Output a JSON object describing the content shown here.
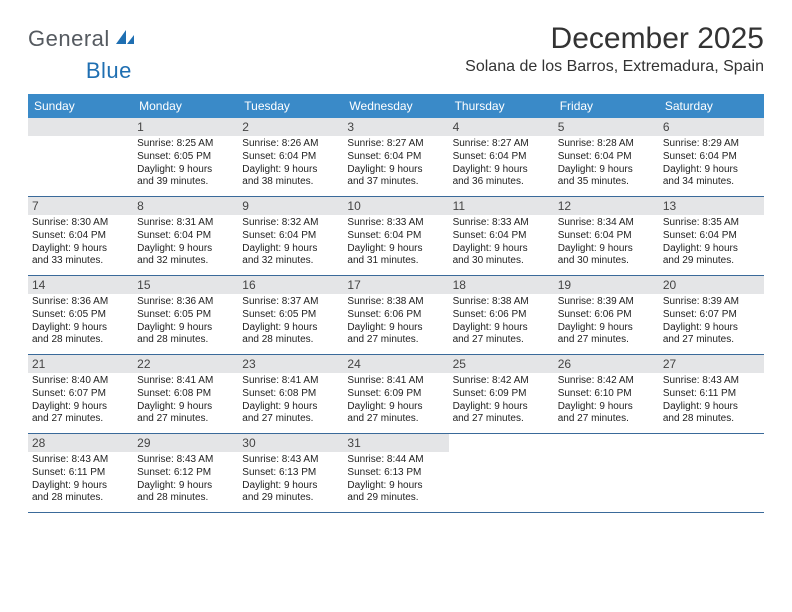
{
  "brand": {
    "part1": "General",
    "part2": "Blue"
  },
  "title": "December 2025",
  "location": "Solana de los Barros, Extremadura, Spain",
  "colors": {
    "header_bg": "#3a8ac8",
    "header_text": "#ffffff",
    "band_bg": "#e4e5e7",
    "rule": "#3a6a9a",
    "title_color": "#333333",
    "body_text": "#222222",
    "brand_gray": "#555a60",
    "brand_blue": "#1f6fb2",
    "background": "#ffffff"
  },
  "typography": {
    "title_pt": 30,
    "subtitle_pt": 16,
    "header_pt": 12,
    "daynum_pt": 12,
    "body_pt": 10
  },
  "layout": {
    "columns": 7,
    "rows": 5,
    "aspect_w": 792,
    "aspect_h": 612
  },
  "weekdays": [
    "Sunday",
    "Monday",
    "Tuesday",
    "Wednesday",
    "Thursday",
    "Friday",
    "Saturday"
  ],
  "weeks": [
    [
      {
        "num": "",
        "blank": true
      },
      {
        "num": "1",
        "sunrise": "Sunrise: 8:25 AM",
        "sunset": "Sunset: 6:05 PM",
        "day1": "Daylight: 9 hours",
        "day2": "and 39 minutes."
      },
      {
        "num": "2",
        "sunrise": "Sunrise: 8:26 AM",
        "sunset": "Sunset: 6:04 PM",
        "day1": "Daylight: 9 hours",
        "day2": "and 38 minutes."
      },
      {
        "num": "3",
        "sunrise": "Sunrise: 8:27 AM",
        "sunset": "Sunset: 6:04 PM",
        "day1": "Daylight: 9 hours",
        "day2": "and 37 minutes."
      },
      {
        "num": "4",
        "sunrise": "Sunrise: 8:27 AM",
        "sunset": "Sunset: 6:04 PM",
        "day1": "Daylight: 9 hours",
        "day2": "and 36 minutes."
      },
      {
        "num": "5",
        "sunrise": "Sunrise: 8:28 AM",
        "sunset": "Sunset: 6:04 PM",
        "day1": "Daylight: 9 hours",
        "day2": "and 35 minutes."
      },
      {
        "num": "6",
        "sunrise": "Sunrise: 8:29 AM",
        "sunset": "Sunset: 6:04 PM",
        "day1": "Daylight: 9 hours",
        "day2": "and 34 minutes."
      }
    ],
    [
      {
        "num": "7",
        "sunrise": "Sunrise: 8:30 AM",
        "sunset": "Sunset: 6:04 PM",
        "day1": "Daylight: 9 hours",
        "day2": "and 33 minutes."
      },
      {
        "num": "8",
        "sunrise": "Sunrise: 8:31 AM",
        "sunset": "Sunset: 6:04 PM",
        "day1": "Daylight: 9 hours",
        "day2": "and 32 minutes."
      },
      {
        "num": "9",
        "sunrise": "Sunrise: 8:32 AM",
        "sunset": "Sunset: 6:04 PM",
        "day1": "Daylight: 9 hours",
        "day2": "and 32 minutes."
      },
      {
        "num": "10",
        "sunrise": "Sunrise: 8:33 AM",
        "sunset": "Sunset: 6:04 PM",
        "day1": "Daylight: 9 hours",
        "day2": "and 31 minutes."
      },
      {
        "num": "11",
        "sunrise": "Sunrise: 8:33 AM",
        "sunset": "Sunset: 6:04 PM",
        "day1": "Daylight: 9 hours",
        "day2": "and 30 minutes."
      },
      {
        "num": "12",
        "sunrise": "Sunrise: 8:34 AM",
        "sunset": "Sunset: 6:04 PM",
        "day1": "Daylight: 9 hours",
        "day2": "and 30 minutes."
      },
      {
        "num": "13",
        "sunrise": "Sunrise: 8:35 AM",
        "sunset": "Sunset: 6:04 PM",
        "day1": "Daylight: 9 hours",
        "day2": "and 29 minutes."
      }
    ],
    [
      {
        "num": "14",
        "sunrise": "Sunrise: 8:36 AM",
        "sunset": "Sunset: 6:05 PM",
        "day1": "Daylight: 9 hours",
        "day2": "and 28 minutes."
      },
      {
        "num": "15",
        "sunrise": "Sunrise: 8:36 AM",
        "sunset": "Sunset: 6:05 PM",
        "day1": "Daylight: 9 hours",
        "day2": "and 28 minutes."
      },
      {
        "num": "16",
        "sunrise": "Sunrise: 8:37 AM",
        "sunset": "Sunset: 6:05 PM",
        "day1": "Daylight: 9 hours",
        "day2": "and 28 minutes."
      },
      {
        "num": "17",
        "sunrise": "Sunrise: 8:38 AM",
        "sunset": "Sunset: 6:06 PM",
        "day1": "Daylight: 9 hours",
        "day2": "and 27 minutes."
      },
      {
        "num": "18",
        "sunrise": "Sunrise: 8:38 AM",
        "sunset": "Sunset: 6:06 PM",
        "day1": "Daylight: 9 hours",
        "day2": "and 27 minutes."
      },
      {
        "num": "19",
        "sunrise": "Sunrise: 8:39 AM",
        "sunset": "Sunset: 6:06 PM",
        "day1": "Daylight: 9 hours",
        "day2": "and 27 minutes."
      },
      {
        "num": "20",
        "sunrise": "Sunrise: 8:39 AM",
        "sunset": "Sunset: 6:07 PM",
        "day1": "Daylight: 9 hours",
        "day2": "and 27 minutes."
      }
    ],
    [
      {
        "num": "21",
        "sunrise": "Sunrise: 8:40 AM",
        "sunset": "Sunset: 6:07 PM",
        "day1": "Daylight: 9 hours",
        "day2": "and 27 minutes."
      },
      {
        "num": "22",
        "sunrise": "Sunrise: 8:41 AM",
        "sunset": "Sunset: 6:08 PM",
        "day1": "Daylight: 9 hours",
        "day2": "and 27 minutes."
      },
      {
        "num": "23",
        "sunrise": "Sunrise: 8:41 AM",
        "sunset": "Sunset: 6:08 PM",
        "day1": "Daylight: 9 hours",
        "day2": "and 27 minutes."
      },
      {
        "num": "24",
        "sunrise": "Sunrise: 8:41 AM",
        "sunset": "Sunset: 6:09 PM",
        "day1": "Daylight: 9 hours",
        "day2": "and 27 minutes."
      },
      {
        "num": "25",
        "sunrise": "Sunrise: 8:42 AM",
        "sunset": "Sunset: 6:09 PM",
        "day1": "Daylight: 9 hours",
        "day2": "and 27 minutes."
      },
      {
        "num": "26",
        "sunrise": "Sunrise: 8:42 AM",
        "sunset": "Sunset: 6:10 PM",
        "day1": "Daylight: 9 hours",
        "day2": "and 27 minutes."
      },
      {
        "num": "27",
        "sunrise": "Sunrise: 8:43 AM",
        "sunset": "Sunset: 6:11 PM",
        "day1": "Daylight: 9 hours",
        "day2": "and 28 minutes."
      }
    ],
    [
      {
        "num": "28",
        "sunrise": "Sunrise: 8:43 AM",
        "sunset": "Sunset: 6:11 PM",
        "day1": "Daylight: 9 hours",
        "day2": "and 28 minutes."
      },
      {
        "num": "29",
        "sunrise": "Sunrise: 8:43 AM",
        "sunset": "Sunset: 6:12 PM",
        "day1": "Daylight: 9 hours",
        "day2": "and 28 minutes."
      },
      {
        "num": "30",
        "sunrise": "Sunrise: 8:43 AM",
        "sunset": "Sunset: 6:13 PM",
        "day1": "Daylight: 9 hours",
        "day2": "and 29 minutes."
      },
      {
        "num": "31",
        "sunrise": "Sunrise: 8:44 AM",
        "sunset": "Sunset: 6:13 PM",
        "day1": "Daylight: 9 hours",
        "day2": "and 29 minutes."
      },
      {
        "num": "",
        "blank": true
      },
      {
        "num": "",
        "blank": true
      },
      {
        "num": "",
        "blank": true
      }
    ]
  ]
}
